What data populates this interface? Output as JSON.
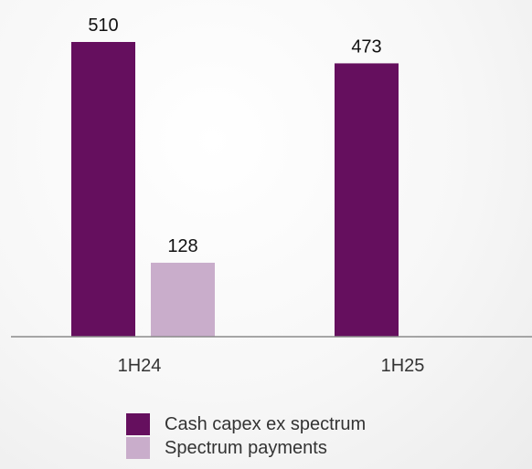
{
  "chart_data": {
    "type": "bar",
    "categories": [
      "1H24",
      "1H25"
    ],
    "series": [
      {
        "name": "Cash capex ex spectrum",
        "color": "#650F5E",
        "values": [
          510,
          473
        ]
      },
      {
        "name": "Spectrum payments",
        "color": "#C9ADCB",
        "values": [
          128,
          null
        ]
      }
    ],
    "ylim": [
      0,
      520
    ],
    "grid": false,
    "legend_position": "bottom"
  }
}
